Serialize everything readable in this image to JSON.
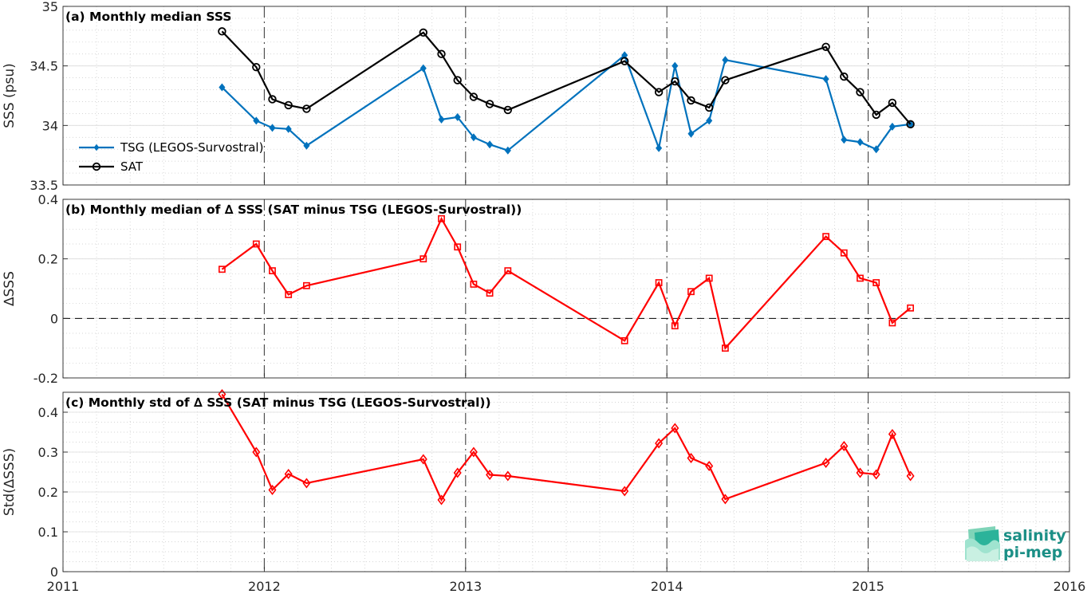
{
  "x_ticks": [
    "2011",
    "2012",
    "2013",
    "2014",
    "2015",
    "2016"
  ],
  "logo": {
    "line1": "salinity",
    "line2": "pi-mep"
  },
  "colors": {
    "tsg": "#0072bd",
    "sat": "#000000",
    "delta": "#ff0000"
  },
  "chart_data": [
    {
      "type": "line",
      "title": "(a) Monthly median SSS",
      "ylabel": "SSS (psu)",
      "xlim": [
        2011,
        2016
      ],
      "ylim": [
        33.5,
        35
      ],
      "yticks": [
        "33.5",
        "34",
        "34.5",
        "35"
      ],
      "grid": true,
      "legend_position": "left",
      "series": [
        {
          "name": "TSG (LEGOS-Survostral)",
          "marker": "diamond",
          "x": [
            2011.79,
            2011.96,
            2012.04,
            2012.12,
            2012.21,
            2012.79,
            2012.88,
            2012.96,
            2013.04,
            2013.12,
            2013.21,
            2013.79,
            2013.96,
            2014.04,
            2014.12,
            2014.21,
            2014.29,
            2014.79,
            2014.88,
            2014.96,
            2015.04,
            2015.12,
            2015.21
          ],
          "values": [
            34.32,
            34.04,
            33.98,
            33.97,
            33.83,
            34.48,
            34.05,
            34.07,
            33.9,
            33.84,
            33.79,
            34.59,
            33.81,
            34.5,
            33.93,
            34.04,
            34.55,
            34.39,
            33.88,
            33.86,
            33.8,
            33.99,
            34.01
          ]
        },
        {
          "name": "SAT",
          "marker": "circle",
          "x": [
            2011.79,
            2011.96,
            2012.04,
            2012.12,
            2012.21,
            2012.79,
            2012.88,
            2012.96,
            2013.04,
            2013.12,
            2013.21,
            2013.79,
            2013.96,
            2014.04,
            2014.12,
            2014.21,
            2014.29,
            2014.79,
            2014.88,
            2014.96,
            2015.04,
            2015.12,
            2015.21
          ],
          "values": [
            34.79,
            34.49,
            34.22,
            34.17,
            34.14,
            34.78,
            34.6,
            34.38,
            34.24,
            34.18,
            34.13,
            34.54,
            34.28,
            34.37,
            34.21,
            34.15,
            34.38,
            34.66,
            34.41,
            34.28,
            34.09,
            34.19,
            34.01
          ]
        }
      ]
    },
    {
      "type": "line",
      "title": "(b) Monthly median of ∆ SSS (SAT minus TSG (LEGOS-Survostral))",
      "ylabel": "∆SSS",
      "xlim": [
        2011,
        2016
      ],
      "ylim": [
        -0.2,
        0.4
      ],
      "yticks": [
        "-0.2",
        "0",
        "0.2",
        "0.4"
      ],
      "grid": true,
      "zero_line": true,
      "series": [
        {
          "marker": "square",
          "x": [
            2011.79,
            2011.96,
            2012.04,
            2012.12,
            2012.21,
            2012.79,
            2012.88,
            2012.96,
            2013.04,
            2013.12,
            2013.21,
            2013.79,
            2013.96,
            2014.04,
            2014.12,
            2014.21,
            2014.29,
            2014.79,
            2014.88,
            2014.96,
            2015.04,
            2015.12,
            2015.21
          ],
          "values": [
            0.165,
            0.25,
            0.16,
            0.08,
            0.11,
            0.2,
            0.335,
            0.24,
            0.115,
            0.085,
            0.16,
            -0.075,
            0.12,
            -0.025,
            0.09,
            0.135,
            -0.1,
            0.275,
            0.22,
            0.135,
            0.12,
            -0.015,
            0.035
          ]
        }
      ]
    },
    {
      "type": "line",
      "title": "(c) Monthly std of ∆ SSS (SAT minus TSG (LEGOS-Survostral))",
      "ylabel": "Std(∆SSS)",
      "xlim": [
        2011,
        2016
      ],
      "ylim": [
        0,
        0.45
      ],
      "yticks": [
        "0",
        "0.1",
        "0.2",
        "0.3",
        "0.4"
      ],
      "grid": true,
      "series": [
        {
          "marker": "diamond",
          "x": [
            2011.79,
            2011.96,
            2012.04,
            2012.12,
            2012.21,
            2012.79,
            2012.88,
            2012.96,
            2013.04,
            2013.12,
            2013.21,
            2013.79,
            2013.96,
            2014.04,
            2014.12,
            2014.21,
            2014.29,
            2014.79,
            2014.88,
            2014.96,
            2015.04,
            2015.12,
            2015.21
          ],
          "values": [
            0.445,
            0.3,
            0.205,
            0.245,
            0.222,
            0.282,
            0.18,
            0.248,
            0.3,
            0.243,
            0.24,
            0.202,
            0.322,
            0.36,
            0.285,
            0.265,
            0.182,
            0.273,
            0.315,
            0.248,
            0.244,
            0.345,
            0.24
          ]
        }
      ]
    }
  ]
}
